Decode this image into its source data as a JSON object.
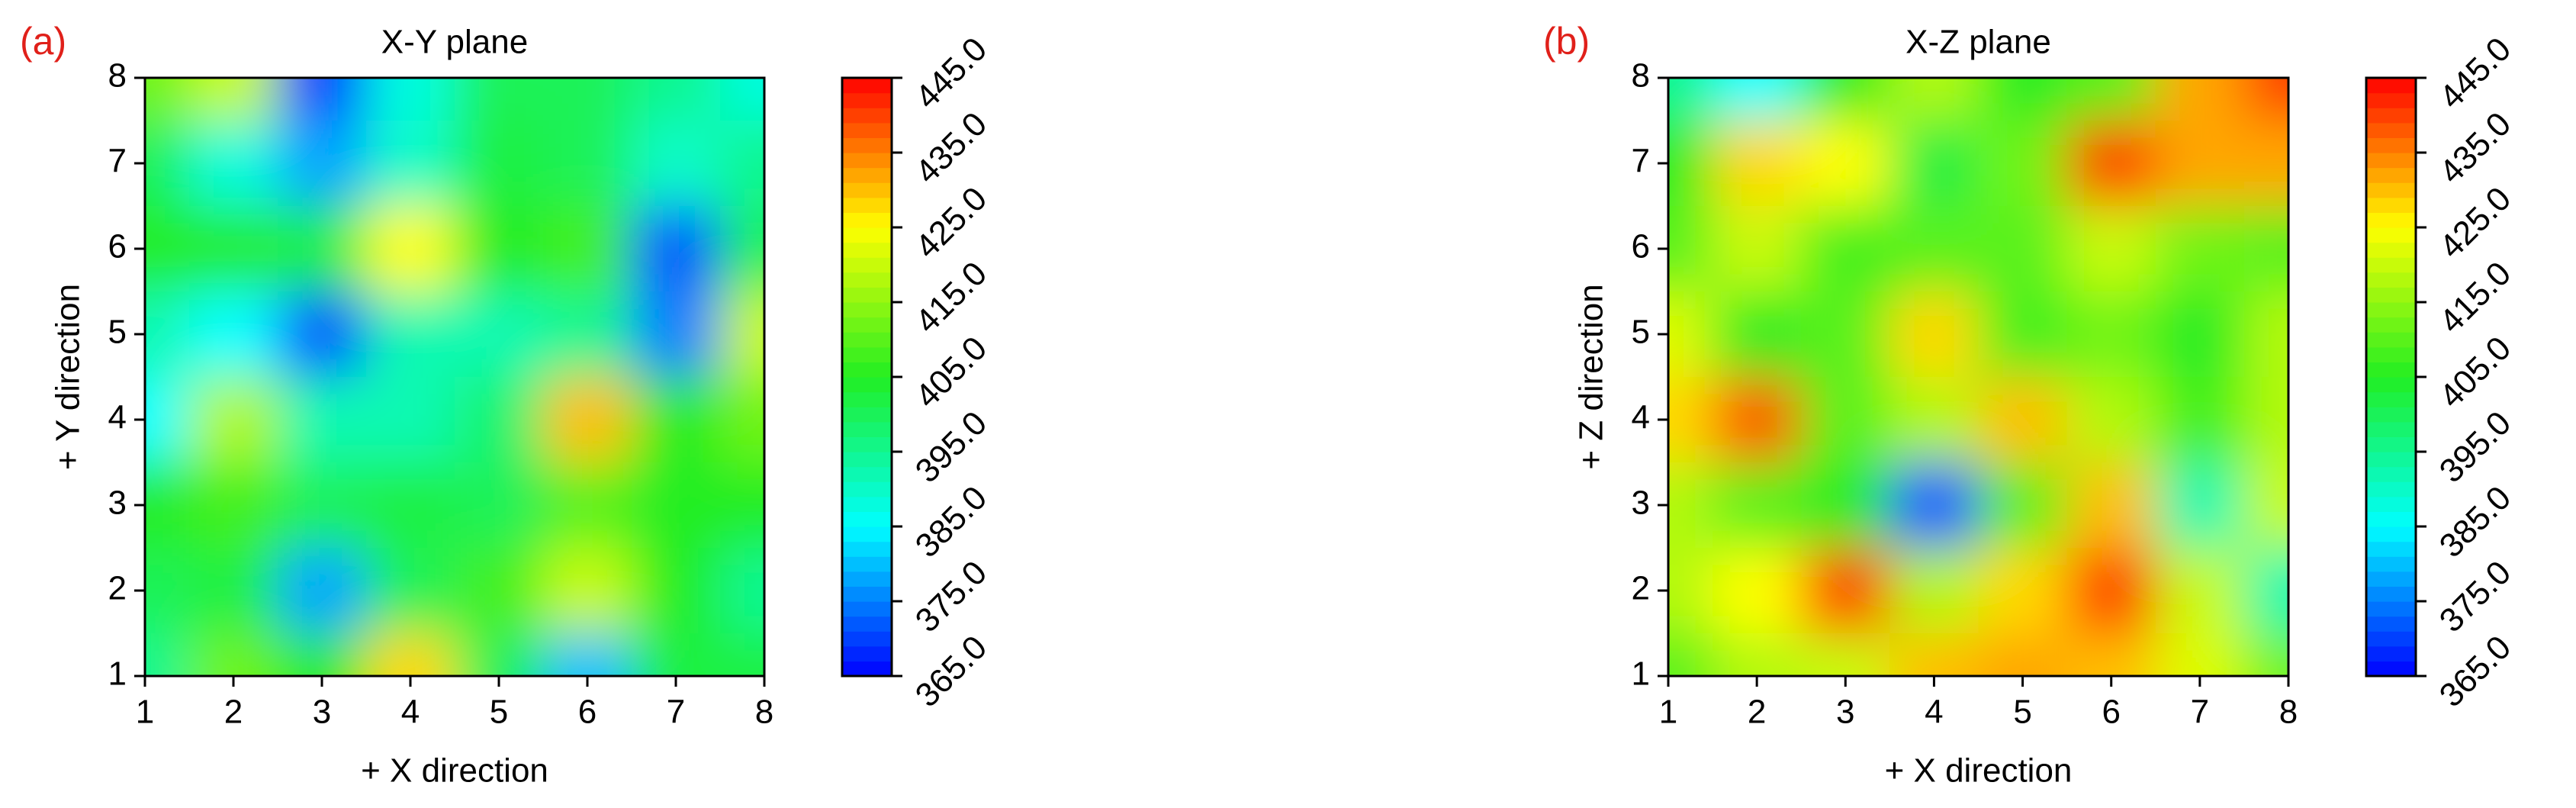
{
  "chart_data": [
    {
      "type": "heatmap",
      "panel_label": "(a)",
      "title": "X-Y plane",
      "xlabel": "+ X direction",
      "ylabel": "+ Y direction",
      "x": [
        1,
        2,
        3,
        4,
        5,
        6,
        7,
        8
      ],
      "y": [
        1,
        2,
        3,
        4,
        5,
        6,
        7,
        8
      ],
      "z": [
        [
          395,
          412,
          405,
          428,
          400,
          380,
          402,
          402
        ],
        [
          400,
          402,
          378,
          400,
          408,
          420,
          405,
          395
        ],
        [
          405,
          408,
          400,
          402,
          400,
          410,
          405,
          405
        ],
        [
          385,
          418,
          392,
          392,
          398,
          430,
          405,
          412
        ],
        [
          392,
          385,
          372,
          392,
          392,
          395,
          375,
          420
        ],
        [
          405,
          405,
          402,
          425,
          405,
          408,
          372,
          400
        ],
        [
          400,
          388,
          378,
          390,
          402,
          400,
          390,
          395
        ],
        [
          412,
          420,
          370,
          388,
          400,
          400,
          395,
          388
        ]
      ],
      "xlim": [
        1,
        8
      ],
      "ylim": [
        1,
        8
      ],
      "xticks": [
        1,
        2,
        3,
        4,
        5,
        6,
        7,
        8
      ],
      "yticks": [
        1,
        2,
        3,
        4,
        5,
        6,
        7,
        8
      ],
      "zlim": [
        365,
        445
      ],
      "zticks": [
        {
          "value": 365,
          "label": "365.0"
        },
        {
          "value": 375,
          "label": "375.0"
        },
        {
          "value": 385,
          "label": "385.0"
        },
        {
          "value": 395,
          "label": "395.0"
        },
        {
          "value": 405,
          "label": "405.0"
        },
        {
          "value": 415,
          "label": "415.0"
        },
        {
          "value": 425,
          "label": "425.0"
        },
        {
          "value": 435,
          "label": "435.0"
        },
        {
          "value": 445,
          "label": "445.0"
        }
      ],
      "colormap": [
        "#0000ff",
        "#00ffff",
        "#22ee22",
        "#ffff00",
        "#ff0000"
      ]
    },
    {
      "type": "heatmap",
      "panel_label": "(b)",
      "title": "X-Z plane",
      "xlabel": "+ X direction",
      "ylabel": "+ Z direction",
      "x": [
        1,
        2,
        3,
        4,
        5,
        6,
        7,
        8
      ],
      "y": [
        1,
        2,
        3,
        4,
        5,
        6,
        7,
        8
      ],
      "z": [
        [
          410,
          418,
          420,
          430,
          432,
          430,
          422,
          412
        ],
        [
          418,
          425,
          440,
          418,
          428,
          440,
          420,
          392
        ],
        [
          418,
          410,
          405,
          372,
          410,
          430,
          392,
          420
        ],
        [
          428,
          438,
          410,
          418,
          430,
          418,
          408,
          418
        ],
        [
          422,
          405,
          410,
          428,
          408,
          412,
          405,
          418
        ],
        [
          410,
          420,
          408,
          410,
          410,
          420,
          412,
          410
        ],
        [
          405,
          428,
          425,
          402,
          412,
          440,
          432,
          432
        ],
        [
          395,
          385,
          405,
          418,
          405,
          410,
          432,
          440
        ]
      ],
      "xlim": [
        1,
        8
      ],
      "ylim": [
        1,
        8
      ],
      "xticks": [
        1,
        2,
        3,
        4,
        5,
        6,
        7,
        8
      ],
      "yticks": [
        1,
        2,
        3,
        4,
        5,
        6,
        7,
        8
      ],
      "zlim": [
        365,
        445
      ],
      "zticks": [
        {
          "value": 365,
          "label": "365.0"
        },
        {
          "value": 375,
          "label": "375.0"
        },
        {
          "value": 385,
          "label": "385.0"
        },
        {
          "value": 395,
          "label": "395.0"
        },
        {
          "value": 405,
          "label": "405.0"
        },
        {
          "value": 415,
          "label": "415.0"
        },
        {
          "value": 425,
          "label": "425.0"
        },
        {
          "value": 435,
          "label": "435.0"
        },
        {
          "value": 445,
          "label": "445.0"
        }
      ],
      "colormap": [
        "#0000ff",
        "#00ffff",
        "#22ee22",
        "#ffff00",
        "#ff0000"
      ]
    }
  ]
}
